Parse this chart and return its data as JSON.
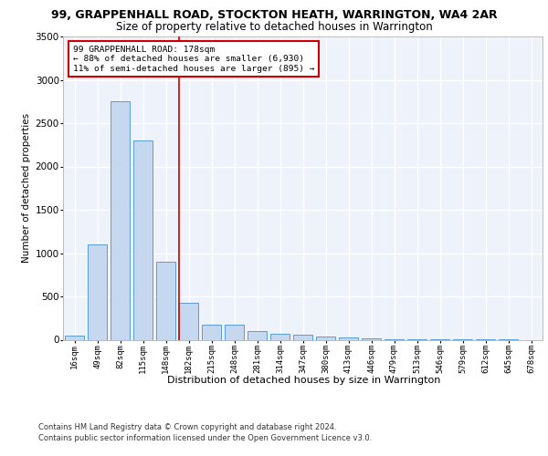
{
  "title": "99, GRAPPENHALL ROAD, STOCKTON HEATH, WARRINGTON, WA4 2AR",
  "subtitle": "Size of property relative to detached houses in Warrington",
  "xlabel": "Distribution of detached houses by size in Warrington",
  "ylabel": "Number of detached properties",
  "categories": [
    "16sqm",
    "49sqm",
    "82sqm",
    "115sqm",
    "148sqm",
    "182sqm",
    "215sqm",
    "248sqm",
    "281sqm",
    "314sqm",
    "347sqm",
    "380sqm",
    "413sqm",
    "446sqm",
    "479sqm",
    "513sqm",
    "546sqm",
    "579sqm",
    "612sqm",
    "645sqm",
    "678sqm"
  ],
  "values": [
    50,
    1100,
    2750,
    2300,
    900,
    430,
    170,
    170,
    100,
    65,
    55,
    35,
    25,
    20,
    10,
    5,
    3,
    2,
    1,
    1,
    0
  ],
  "bar_color": "#c5d8f0",
  "bar_edge_color": "#5b9bd5",
  "red_line_index": 5,
  "annotation_line1": "99 GRAPPENHALL ROAD: 178sqm",
  "annotation_line2": "← 88% of detached houses are smaller (6,930)",
  "annotation_line3": "11% of semi-detached houses are larger (895) →",
  "ylim": [
    0,
    3500
  ],
  "yticks": [
    0,
    500,
    1000,
    1500,
    2000,
    2500,
    3000,
    3500
  ],
  "plot_bg_color": "#eef2fa",
  "grid_color": "#ffffff",
  "title_fontsize": 9,
  "subtitle_fontsize": 8.5,
  "footnote1": "Contains HM Land Registry data © Crown copyright and database right 2024.",
  "footnote2": "Contains public sector information licensed under the Open Government Licence v3.0."
}
